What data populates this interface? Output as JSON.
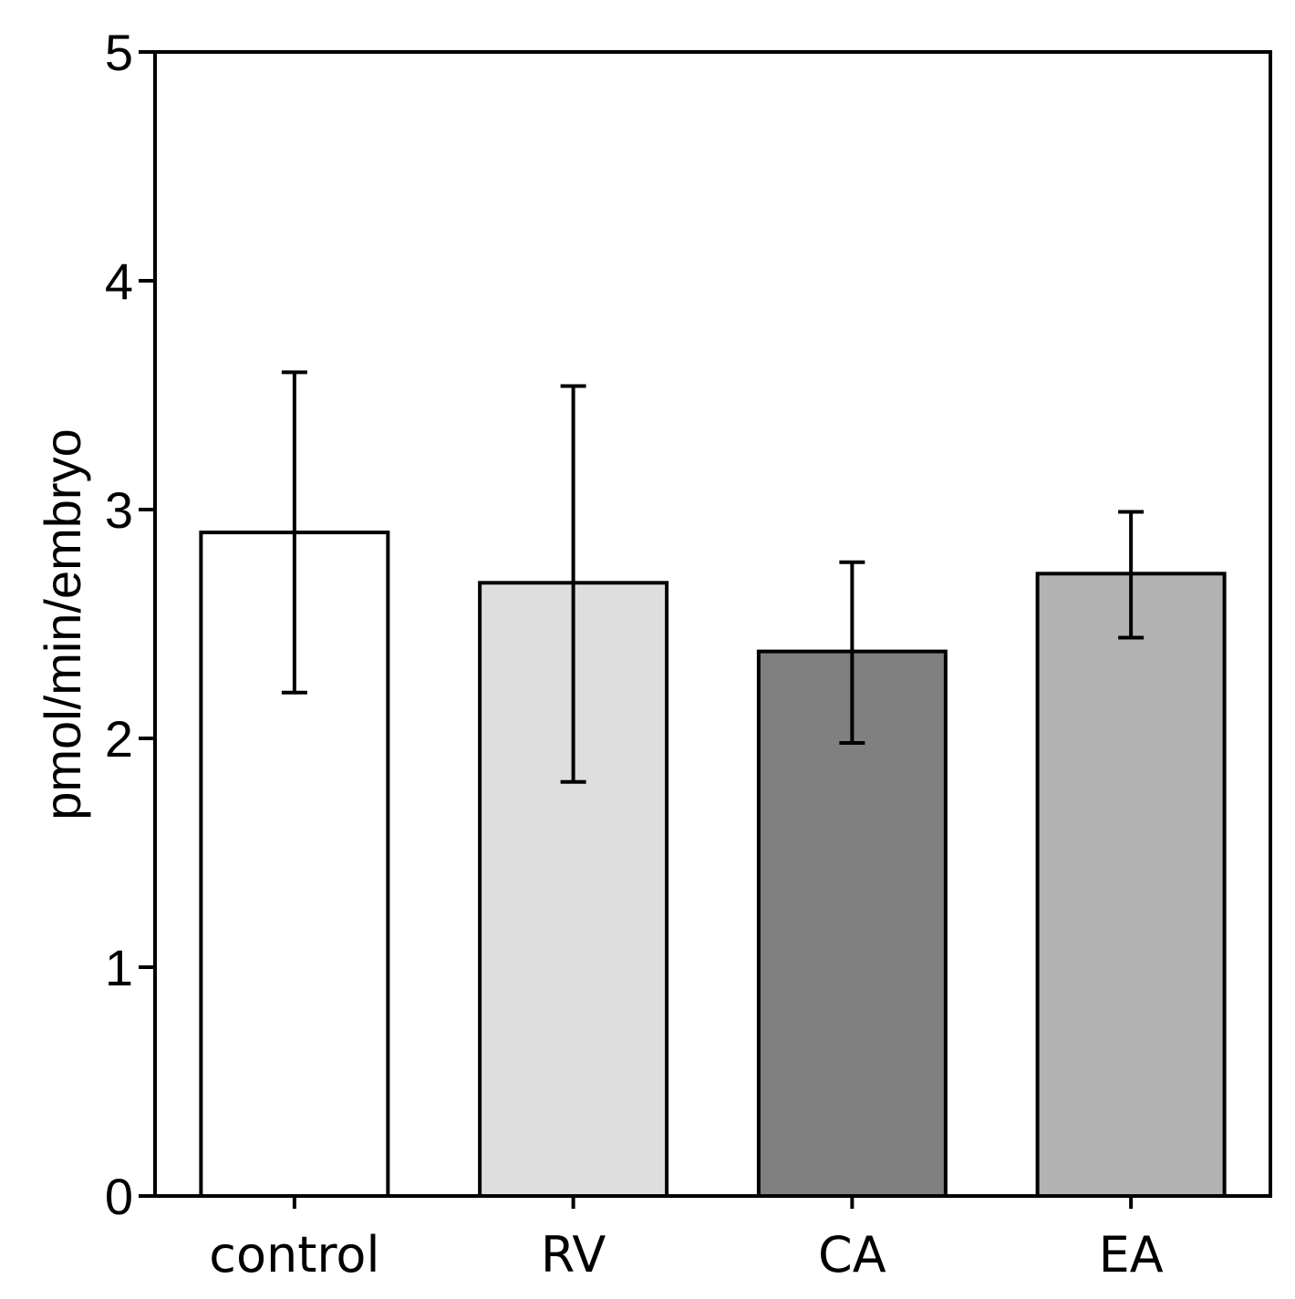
{
  "chart_data": {
    "type": "bar",
    "title": "",
    "xlabel": "",
    "ylabel": "pmol/min/embryo",
    "ylim": [
      0,
      5
    ],
    "yticks": [
      0,
      1,
      2,
      3,
      4,
      5
    ],
    "grid": false,
    "legend": "none",
    "categories": [
      "control",
      "RV",
      "CA",
      "EA"
    ],
    "values": [
      2.9,
      2.68,
      2.38,
      2.72
    ],
    "error_low": [
      2.2,
      1.81,
      1.98,
      2.44
    ],
    "error_high": [
      3.6,
      3.54,
      2.77,
      2.99
    ],
    "colors": [
      "#ffffff",
      "#dedede",
      "#808080",
      "#b3b3b3"
    ]
  }
}
